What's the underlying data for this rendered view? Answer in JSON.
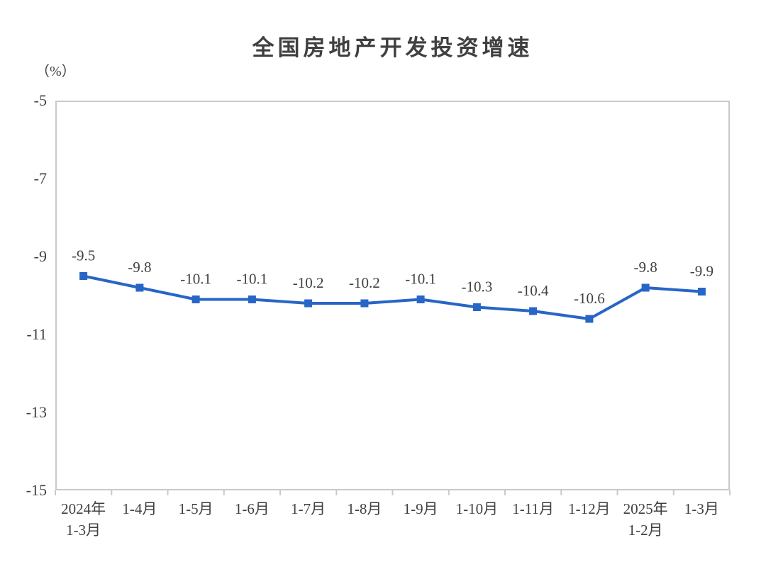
{
  "chart_data": {
    "type": "line",
    "title": "全国房地产开发投资增速",
    "unit_label": "（%）",
    "categories": [
      [
        "2024年",
        "1-3月"
      ],
      [
        "1-4月"
      ],
      [
        "1-5月"
      ],
      [
        "1-6月"
      ],
      [
        "1-7月"
      ],
      [
        "1-8月"
      ],
      [
        "1-9月"
      ],
      [
        "1-10月"
      ],
      [
        "1-11月"
      ],
      [
        "1-12月"
      ],
      [
        "2025年",
        "1-2月"
      ],
      [
        "1-3月"
      ]
    ],
    "values": [
      -9.5,
      -9.8,
      -10.1,
      -10.1,
      -10.2,
      -10.2,
      -10.1,
      -10.3,
      -10.4,
      -10.6,
      -9.8,
      -9.9
    ],
    "data_labels": [
      "-9.5",
      "-9.8",
      "-10.1",
      "-10.1",
      "-10.2",
      "-10.2",
      "-10.1",
      "-10.3",
      "-10.4",
      "-10.6",
      "-9.8",
      "-9.9"
    ],
    "xlabel": "",
    "ylabel": "",
    "ylim": [
      -15,
      -5
    ],
    "yticks": [
      "-5",
      "-7",
      "-9",
      "-11",
      "-13",
      "-15"
    ],
    "grid": false,
    "legend": "none",
    "marker": "square",
    "colors": {
      "line": "#2766c6",
      "marker": "#2766c6",
      "axis": "#c9c9c9",
      "text": "#404040"
    }
  }
}
